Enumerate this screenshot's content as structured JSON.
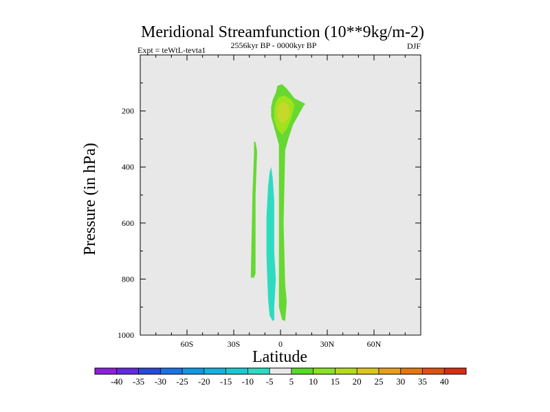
{
  "chart_data": {
    "type": "contour",
    "title": "Meridional Streamfunction (10**9kg/m-2)",
    "subtitle_left": "Expt = teWtL-tevta1",
    "subtitle_center": "2556kyr BP - 0000kyr BP",
    "subtitle_right": "DJF",
    "xlabel": "Latitude",
    "ylabel": "Pressure (in hPa)",
    "xlim": [
      -90,
      90
    ],
    "ylim": [
      0,
      1000
    ],
    "y_inverted": true,
    "x_ticks": [
      {
        "value": -60,
        "label": "60S"
      },
      {
        "value": -30,
        "label": "30S"
      },
      {
        "value": 0,
        "label": "0"
      },
      {
        "value": 30,
        "label": "30N"
      },
      {
        "value": 60,
        "label": "60N"
      }
    ],
    "y_ticks": [
      {
        "value": 200,
        "label": "200"
      },
      {
        "value": 400,
        "label": "400"
      },
      {
        "value": 600,
        "label": "600"
      },
      {
        "value": 800,
        "label": "800"
      },
      {
        "value": 1000,
        "label": "1000"
      }
    ],
    "background_level": "-5 to 5",
    "regions": [
      {
        "name": "green-lobe-upper",
        "level": "5 to 10",
        "color": "#66d832",
        "points": [
          [
            -6,
            185
          ],
          [
            -5,
            160
          ],
          [
            -3,
            135
          ],
          [
            -2,
            110
          ],
          [
            1,
            105
          ],
          [
            4,
            120
          ],
          [
            9,
            155
          ],
          [
            16,
            175
          ],
          [
            15,
            180
          ],
          [
            8,
            250
          ],
          [
            5,
            300
          ],
          [
            3,
            340
          ],
          [
            2,
            600
          ],
          [
            3,
            820
          ],
          [
            4,
            880
          ],
          [
            3,
            950
          ],
          [
            1,
            945
          ],
          [
            -1,
            900
          ],
          [
            -1,
            600
          ],
          [
            -1,
            320
          ],
          [
            -4,
            260
          ],
          [
            -6,
            220
          ]
        ]
      },
      {
        "name": "light-green-upper",
        "level": "10 to 15",
        "color": "#a0e21e",
        "points": [
          [
            -4,
            190
          ],
          [
            -3,
            170
          ],
          [
            -1,
            150
          ],
          [
            3,
            145
          ],
          [
            7,
            160
          ],
          [
            9,
            180
          ],
          [
            7,
            225
          ],
          [
            4,
            265
          ],
          [
            1,
            285
          ],
          [
            -2,
            265
          ],
          [
            -4,
            230
          ]
        ]
      },
      {
        "name": "yellow-green-core",
        "level": "15 to 20",
        "color": "#c6d82a",
        "points": [
          [
            -2,
            200
          ],
          [
            -1,
            178
          ],
          [
            2,
            168
          ],
          [
            5,
            178
          ],
          [
            6,
            200
          ],
          [
            5,
            225
          ],
          [
            2,
            245
          ],
          [
            0,
            240
          ],
          [
            -2,
            225
          ]
        ]
      },
      {
        "name": "green-strip-south",
        "level": "5 to 10",
        "color": "#66d832",
        "points": [
          [
            -17,
            310
          ],
          [
            -16,
            310
          ],
          [
            -15,
            345
          ],
          [
            -16,
            500
          ],
          [
            -16,
            780
          ],
          [
            -17,
            795
          ],
          [
            -19,
            795
          ],
          [
            -19,
            780
          ],
          [
            -18,
            500
          ],
          [
            -17,
            350
          ]
        ]
      },
      {
        "name": "cyan-strip",
        "level": "-10 to -5",
        "color": "#2ddcc0",
        "points": [
          [
            -6,
            400
          ],
          [
            -5,
            440
          ],
          [
            -4,
            520
          ],
          [
            -4,
            700
          ],
          [
            -3,
            800
          ],
          [
            -4,
            900
          ],
          [
            -4,
            945
          ],
          [
            -5,
            950
          ],
          [
            -7,
            930
          ],
          [
            -8,
            870
          ],
          [
            -9,
            720
          ],
          [
            -9,
            580
          ],
          [
            -8,
            470
          ],
          [
            -7,
            420
          ]
        ]
      }
    ],
    "colorbar": {
      "levels": [
        "-40",
        "-35",
        "-30",
        "-25",
        "-20",
        "-15",
        "-10",
        "-5",
        "5",
        "10",
        "15",
        "20",
        "25",
        "30",
        "35",
        "40"
      ],
      "colors": [
        "#8c1ee6",
        "#6228e6",
        "#2848e0",
        "#1e72e0",
        "#1496e0",
        "#10b4dc",
        "#12cdd0",
        "#2ddcc0",
        "#e8e8e8",
        "#5ad828",
        "#8ce21e",
        "#b4dc16",
        "#dcc814",
        "#e6a014",
        "#e27814",
        "#e05014",
        "#dc2a14"
      ]
    }
  }
}
